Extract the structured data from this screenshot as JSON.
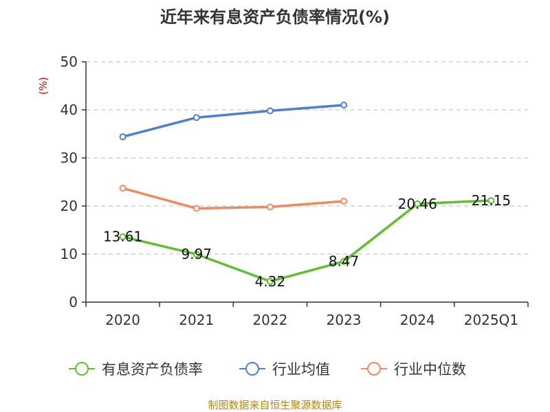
{
  "chart_data": {
    "type": "line",
    "title": "近年来有息资产负债率情况(%)",
    "ylabel": "(%)",
    "categories": [
      "2020",
      "2021",
      "2022",
      "2023",
      "2024",
      "2025Q1"
    ],
    "ylim": [
      0,
      50
    ],
    "yticks": [
      0,
      10,
      20,
      30,
      40,
      50
    ],
    "grid": true,
    "legend_position": "bottom",
    "series": [
      {
        "name": "有息资产负债率",
        "color": "#5ec12b",
        "values": [
          13.61,
          9.97,
          4.32,
          8.47,
          20.46,
          21.15
        ],
        "labels": [
          "13.61",
          "9.97",
          "4.32",
          "8.47",
          "20.46",
          "21.15"
        ]
      },
      {
        "name": "行业均值",
        "color": "#4a7fd6",
        "values": [
          34.4,
          38.4,
          39.8,
          41.0,
          null,
          null
        ]
      },
      {
        "name": "行业中位数",
        "color": "#f08a5d",
        "values": [
          23.7,
          19.5,
          19.8,
          21.0,
          null,
          null
        ]
      }
    ],
    "source": "制图数据来自恒生聚源数据库"
  }
}
